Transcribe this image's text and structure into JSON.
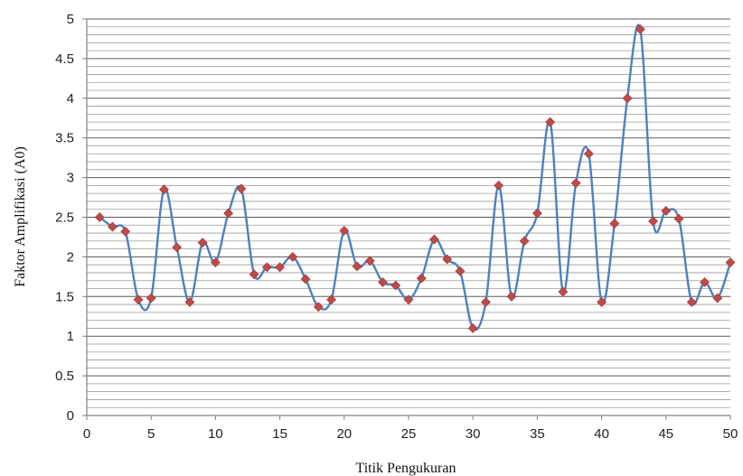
{
  "chart_data": {
    "type": "line",
    "title": "",
    "xlabel": "Titik Pengukuran",
    "ylabel": "Faktor Amplifikasi (A0)",
    "xlim": [
      0,
      50
    ],
    "ylim": [
      0,
      5
    ],
    "xticks": [
      0,
      5,
      10,
      15,
      20,
      25,
      30,
      35,
      40,
      45,
      50
    ],
    "yticks": [
      0,
      0.5,
      1,
      1.5,
      2,
      2.5,
      3,
      3.5,
      4,
      4.5,
      5
    ],
    "xtick_labels": [
      "0",
      "5",
      "10",
      "15",
      "20",
      "25",
      "30",
      "35",
      "40",
      "45",
      "50"
    ],
    "ytick_labels": [
      "0",
      "0.5",
      "1",
      "1.5",
      "2",
      "2.5",
      "3",
      "3.5",
      "4",
      "4.5",
      "5"
    ],
    "minor_y_step": 0.1,
    "grid": true,
    "legend": "none",
    "line_style": "smooth",
    "series": [
      {
        "name": "",
        "color": "#4F81BD",
        "marker": "diamond",
        "marker_color": "#BE4B48",
        "x": [
          1,
          2,
          3,
          4,
          5,
          6,
          7,
          8,
          9,
          10,
          11,
          12,
          13,
          14,
          15,
          16,
          17,
          18,
          19,
          20,
          21,
          22,
          23,
          24,
          25,
          26,
          27,
          28,
          29,
          30,
          31,
          32,
          33,
          34,
          35,
          36,
          37,
          38,
          39,
          40,
          41,
          42,
          43,
          44,
          45,
          46,
          47,
          48,
          49,
          50
        ],
        "y": [
          2.5,
          2.38,
          2.32,
          1.46,
          1.48,
          2.85,
          2.12,
          1.43,
          2.18,
          1.93,
          2.55,
          2.86,
          1.78,
          1.87,
          1.87,
          2.0,
          1.72,
          1.37,
          1.46,
          2.33,
          1.88,
          1.95,
          1.68,
          1.64,
          1.46,
          1.73,
          2.22,
          1.97,
          1.82,
          1.1,
          1.43,
          2.9,
          1.5,
          2.2,
          2.55,
          3.7,
          1.56,
          2.93,
          3.3,
          1.43,
          2.42,
          4.0,
          4.87,
          2.45,
          2.58,
          2.48,
          1.43,
          1.68,
          1.48,
          1.93
        ]
      }
    ]
  }
}
